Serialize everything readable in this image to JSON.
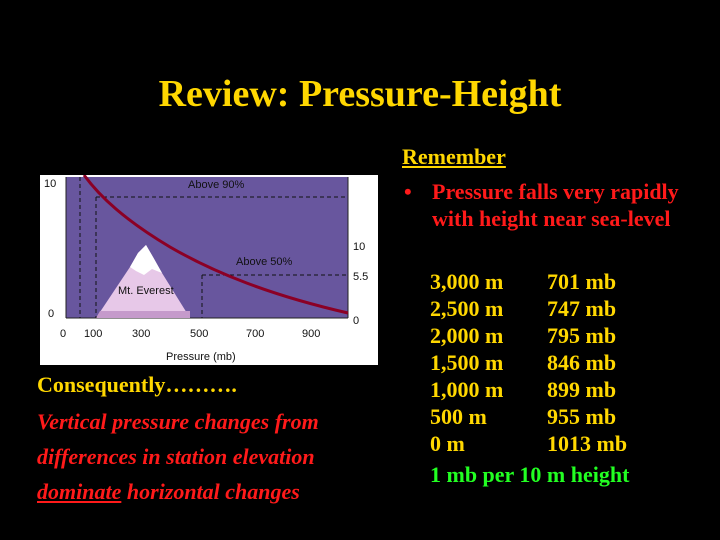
{
  "title": "Review: Pressure-Height",
  "figure": {
    "left_ticks": [
      "10",
      "0"
    ],
    "right_ticks": [
      "10",
      "5.5",
      "0"
    ],
    "x_ticks": [
      "0",
      "100",
      "300",
      "500",
      "700",
      "900"
    ],
    "xlabel": "Pressure (mb)",
    "label_above_90": "Above 90%",
    "label_above_50": "Above 50%",
    "mountain_label": "Mt. Everest"
  },
  "consequently": "Consequently……….",
  "explanation": {
    "line1": "Vertical pressure changes from",
    "line2": "differences in station elevation",
    "line3_underlined": "dominate",
    "line3_rest": " horizontal changes"
  },
  "remember": {
    "heading": "Remember",
    "bullet_symbol": "•",
    "bullet_text": "Pressure falls very rapidly with height near sea-level"
  },
  "pressure_table": [
    {
      "height": "3,000 m",
      "pressure": "701 mb"
    },
    {
      "height": "2,500 m",
      "pressure": "747 mb"
    },
    {
      "height": "2,000 m",
      "pressure": "795 mb"
    },
    {
      "height": "1,500 m",
      "pressure": "846 mb"
    },
    {
      "height": "1,000 m",
      "pressure": "899 mb"
    },
    {
      "height": "500 m",
      "pressure": "955 mb"
    },
    {
      "height": "0 m",
      "pressure": "1013 mb"
    }
  ],
  "summary": "1 mb per 10 m height",
  "colors": {
    "title": "#ffd700",
    "emphasis": "#ff1a1a",
    "summary": "#22ff22",
    "plot_bg": "#68569e",
    "curve": "#8b0025"
  }
}
